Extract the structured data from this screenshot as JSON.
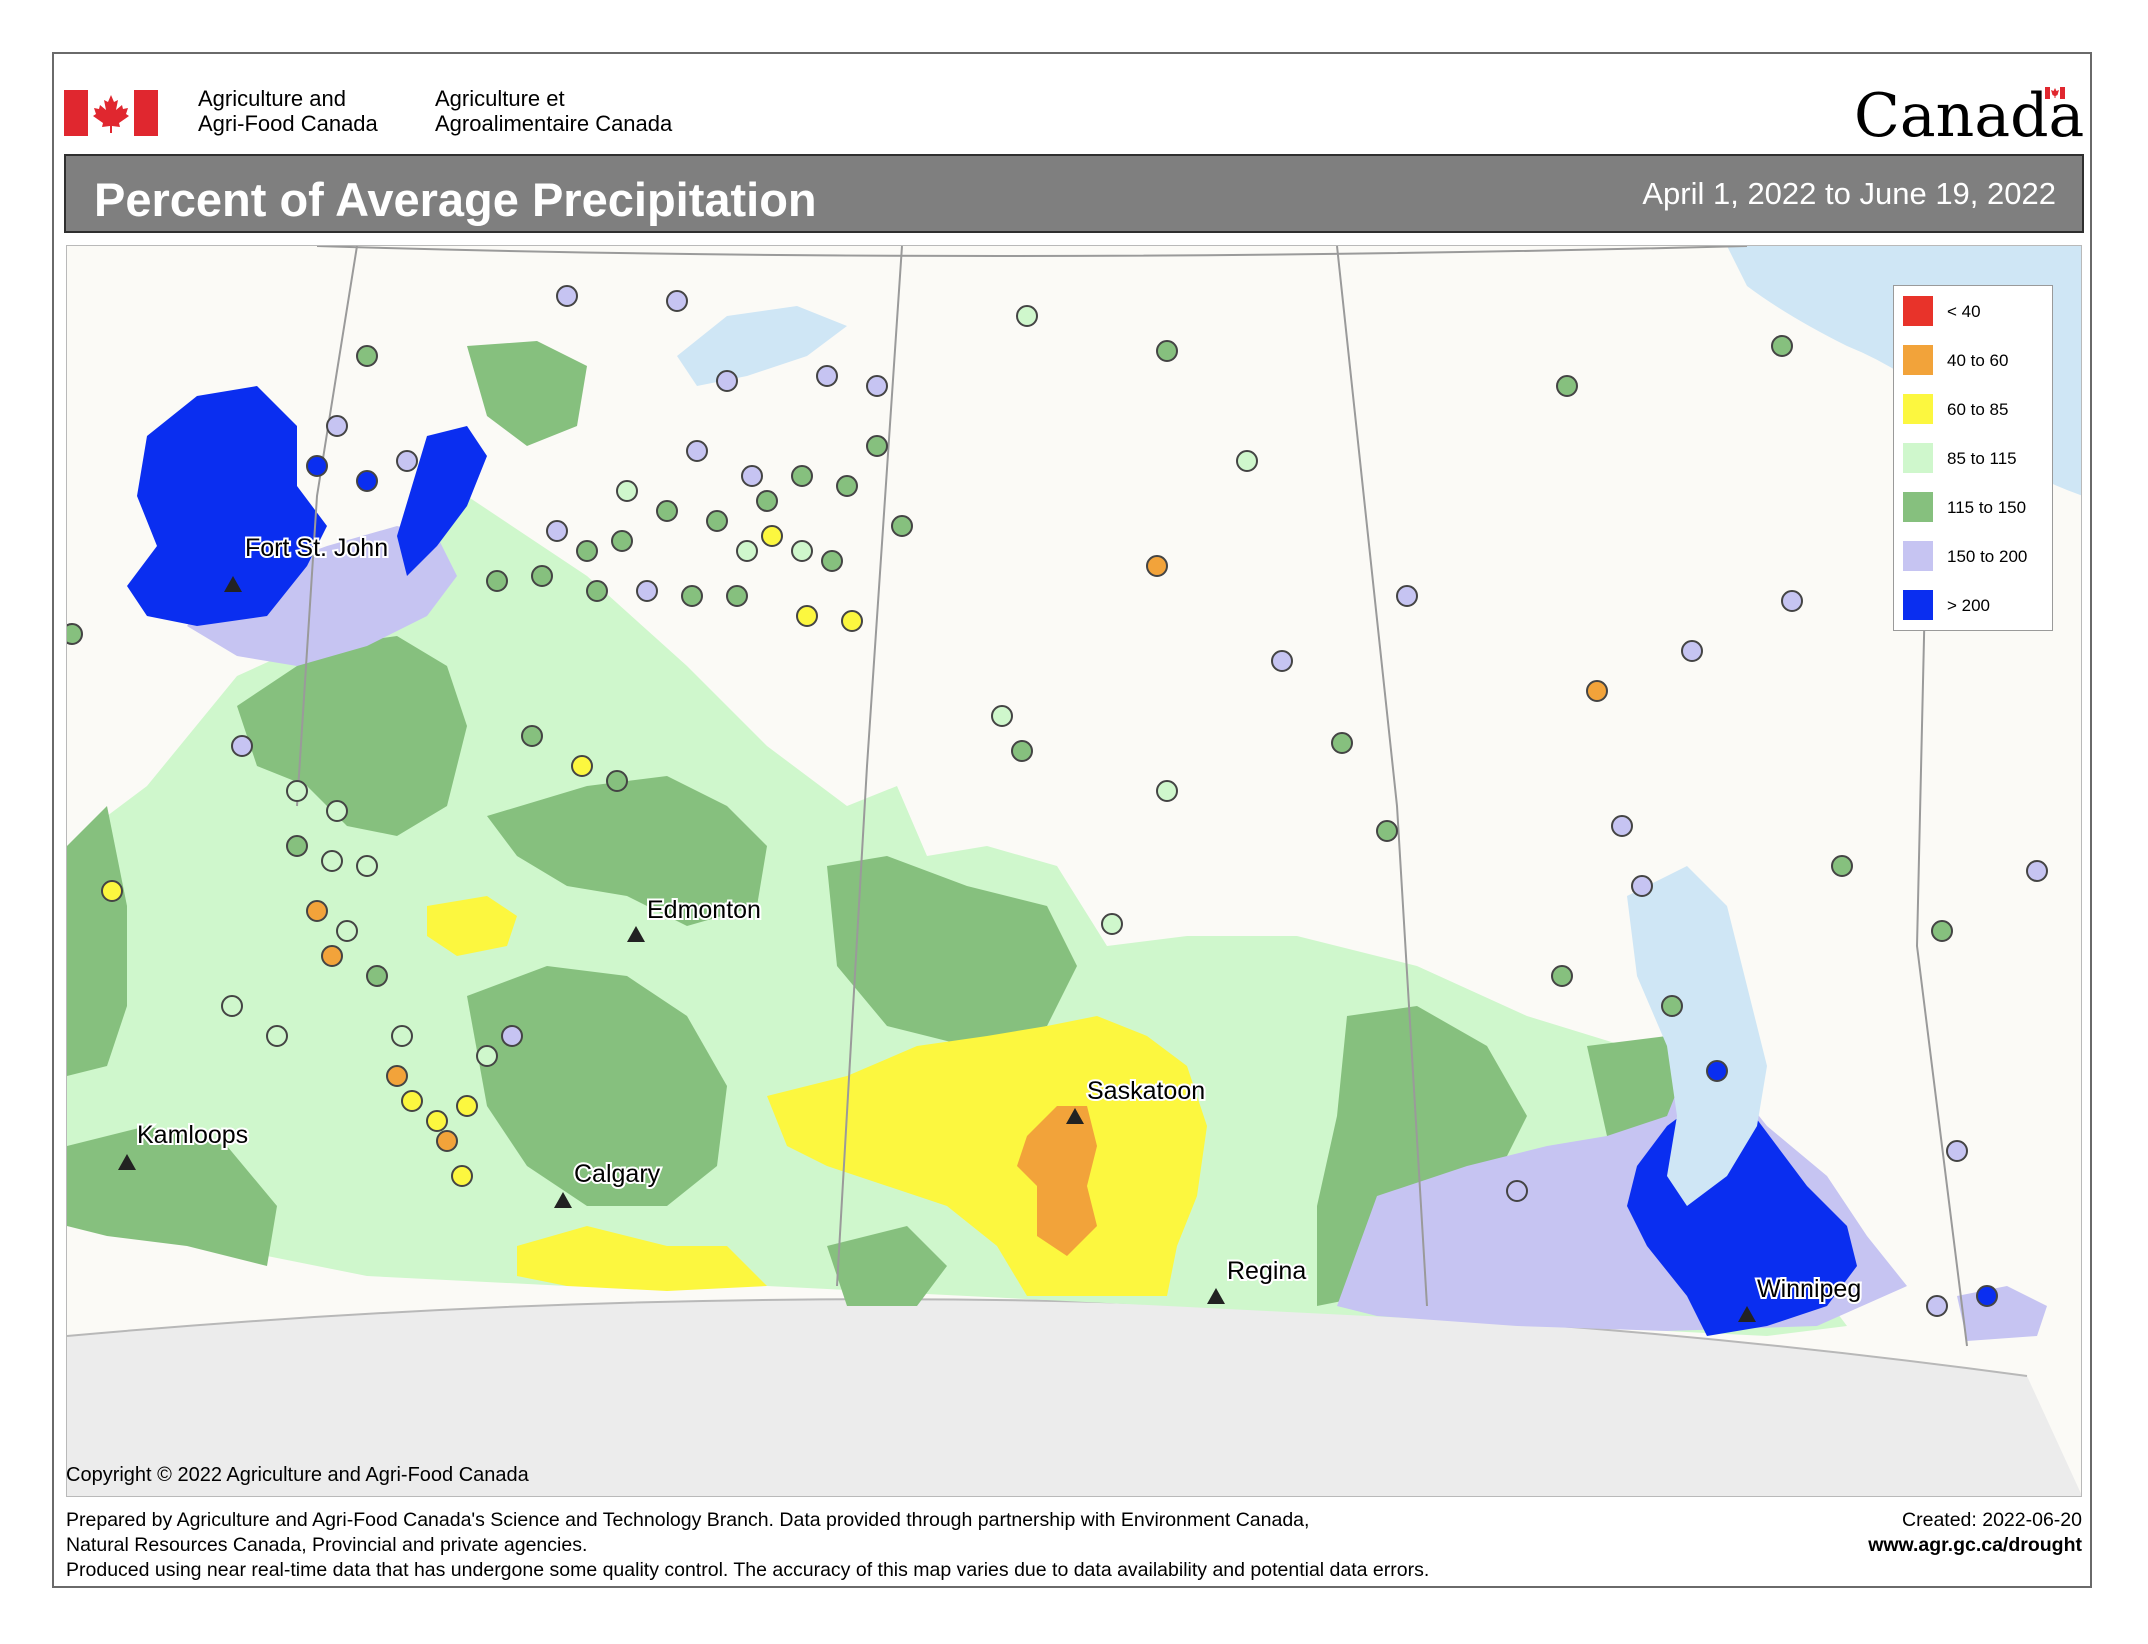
{
  "header": {
    "department_en_line1": "Agriculture and",
    "department_en_line2": "Agri-Food Canada",
    "department_fr_line1": "Agriculture et",
    "department_fr_line2": "Agroalimentaire Canada",
    "wordmark": "Canada",
    "flag_icon": "canadian-flag-icon"
  },
  "title": {
    "text": "Percent of Average Precipitation",
    "date_range": "April 1, 2022 to June 19, 2022"
  },
  "legend": {
    "items": [
      {
        "label": "< 40",
        "color": "#e8332a"
      },
      {
        "label": "40 to 60",
        "color": "#f2a33a"
      },
      {
        "label": "60 to 85",
        "color": "#fcf73f"
      },
      {
        "label": "85 to 115",
        "color": "#cff7cc"
      },
      {
        "label": "115 to 150",
        "color": "#86c07e"
      },
      {
        "label": "150 to 200",
        "color": "#c6c4f2"
      },
      {
        "label": "> 200",
        "color": "#0a2ef0"
      }
    ]
  },
  "cities": [
    {
      "name": "Fort St. John"
    },
    {
      "name": "Edmonton"
    },
    {
      "name": "Saskatoon"
    },
    {
      "name": "Kamloops"
    },
    {
      "name": "Calgary"
    },
    {
      "name": "Regina"
    },
    {
      "name": "Winnipeg"
    }
  ],
  "copyright": "Copyright © 2022 Agriculture and Agri-Food Canada",
  "footer": {
    "line1": "Prepared by Agriculture and Agri-Food Canada's Science and Technology Branch. Data provided through partnership with Environment Canada,",
    "line2": "Natural Resources Canada, Provincial and private agencies.",
    "line3": "Produced using near real-time data that has undergone some quality control. The accuracy of this map varies due to data availability and potential data errors.",
    "created": "Created: 2022-06-20",
    "url": "www.agr.gc.ca/drought"
  }
}
